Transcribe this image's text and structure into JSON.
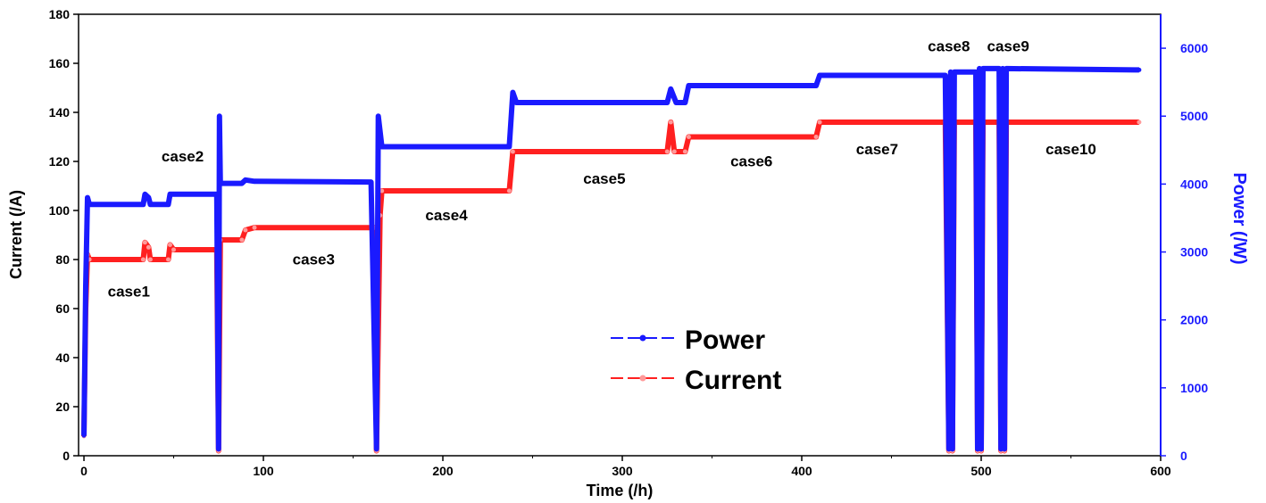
{
  "chart_data": {
    "type": "line",
    "xlabel": "Time (/h)",
    "ylabel_left": "Current (/A)",
    "ylabel_right": "Power (/W)",
    "xlim": [
      -3,
      600
    ],
    "ylim_left": [
      0,
      180
    ],
    "ylim_right": [
      0,
      6500
    ],
    "x_ticks": [
      0,
      100,
      200,
      300,
      400,
      500,
      600
    ],
    "y_left_ticks": [
      0,
      20,
      40,
      60,
      80,
      100,
      120,
      140,
      160,
      180
    ],
    "y_right_ticks": [
      0,
      1000,
      2000,
      3000,
      4000,
      5000,
      6000
    ],
    "legend_position": "center",
    "colors": {
      "power": "#1a1aff",
      "current": "#ff2020",
      "axis_right": "#1a1aff"
    },
    "series": [
      {
        "name": "Power",
        "axis": "right",
        "points": [
          [
            0,
            300
          ],
          [
            1,
            2500
          ],
          [
            2,
            3800
          ],
          [
            3,
            3700
          ],
          [
            33,
            3700
          ],
          [
            34,
            3850
          ],
          [
            36,
            3800
          ],
          [
            37,
            3700
          ],
          [
            47,
            3700
          ],
          [
            48,
            3850
          ],
          [
            50,
            3850
          ],
          [
            51,
            3850
          ],
          [
            74,
            3850
          ],
          [
            75,
            100
          ],
          [
            75.5,
            5000
          ],
          [
            76,
            4010
          ],
          [
            88,
            4010
          ],
          [
            90,
            4060
          ],
          [
            95,
            4040
          ],
          [
            160,
            4030
          ],
          [
            163,
            100
          ],
          [
            164,
            5000
          ],
          [
            166,
            4550
          ],
          [
            237,
            4550
          ],
          [
            239,
            5350
          ],
          [
            241,
            5200
          ],
          [
            325,
            5200
          ],
          [
            327,
            5400
          ],
          [
            330,
            5200
          ],
          [
            335,
            5200
          ],
          [
            337,
            5450
          ],
          [
            408,
            5450
          ],
          [
            410,
            5600
          ],
          [
            480,
            5600
          ],
          [
            482,
            100
          ],
          [
            483,
            5650
          ],
          [
            484,
            100
          ],
          [
            485,
            5650
          ],
          [
            486,
            5650
          ],
          [
            497,
            5650
          ],
          [
            498,
            100
          ],
          [
            499,
            5700
          ],
          [
            500,
            100
          ],
          [
            501,
            5700
          ],
          [
            510,
            5700
          ],
          [
            511,
            100
          ],
          [
            512,
            5700
          ],
          [
            513,
            100
          ],
          [
            514,
            5700
          ],
          [
            588,
            5680
          ]
        ]
      },
      {
        "name": "Current",
        "axis": "left",
        "points": [
          [
            0,
            8
          ],
          [
            1,
            60
          ],
          [
            2,
            82
          ],
          [
            3,
            80
          ],
          [
            33,
            80
          ],
          [
            34,
            87
          ],
          [
            36,
            85
          ],
          [
            37,
            80
          ],
          [
            47,
            80
          ],
          [
            48,
            86
          ],
          [
            50,
            84
          ],
          [
            74,
            84
          ],
          [
            75,
            2
          ],
          [
            76,
            88
          ],
          [
            88,
            88
          ],
          [
            90,
            92
          ],
          [
            95,
            93
          ],
          [
            162,
            93
          ],
          [
            163,
            2
          ],
          [
            165,
            98
          ],
          [
            166,
            108
          ],
          [
            237,
            108
          ],
          [
            239,
            124
          ],
          [
            325,
            124
          ],
          [
            327,
            136
          ],
          [
            329,
            124
          ],
          [
            335,
            124
          ],
          [
            337,
            130
          ],
          [
            408,
            130
          ],
          [
            410,
            136
          ],
          [
            480,
            136
          ],
          [
            482,
            2
          ],
          [
            483,
            136
          ],
          [
            484,
            2
          ],
          [
            485,
            136
          ],
          [
            497,
            136
          ],
          [
            498,
            2
          ],
          [
            499,
            136
          ],
          [
            500,
            2
          ],
          [
            501,
            136
          ],
          [
            510,
            136
          ],
          [
            511,
            2
          ],
          [
            512,
            136
          ],
          [
            513,
            2
          ],
          [
            514,
            136
          ],
          [
            588,
            136
          ]
        ]
      }
    ],
    "annotations": [
      {
        "text": "case1",
        "x": 25,
        "y": 65
      },
      {
        "text": "case2",
        "x": 55,
        "y": 120
      },
      {
        "text": "case3",
        "x": 128,
        "y": 78
      },
      {
        "text": "case4",
        "x": 202,
        "y": 96
      },
      {
        "text": "case5",
        "x": 290,
        "y": 111
      },
      {
        "text": "case6",
        "x": 372,
        "y": 118
      },
      {
        "text": "case7",
        "x": 442,
        "y": 123
      },
      {
        "text": "case8",
        "x": 482,
        "y": 165
      },
      {
        "text": "case9",
        "x": 515,
        "y": 165
      },
      {
        "text": "case10",
        "x": 550,
        "y": 123
      }
    ]
  }
}
